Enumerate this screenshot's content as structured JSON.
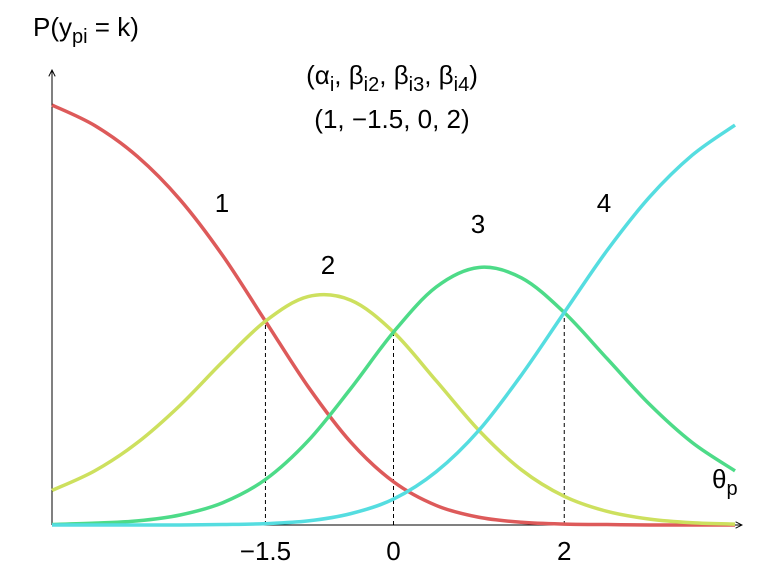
{
  "chart_data": {
    "type": "line",
    "ylabel": [
      "P(y",
      "pi",
      " = k)"
    ],
    "xlabel": [
      "θ",
      "p"
    ],
    "annotations": [
      [
        "(α",
        "i",
        ", β",
        "i2",
        ", β",
        "i3",
        ", β",
        "i4",
        ")"
      ],
      [
        "(1, ",
        "−",
        "1.5, 0, 2)"
      ]
    ],
    "x": [
      -4,
      -3.5,
      -3,
      -2.5,
      -2,
      -1.5,
      -1,
      -0.5,
      0,
      0.5,
      1,
      1.5,
      2,
      2.5,
      3,
      3.5,
      4
    ],
    "series": [
      {
        "name": "1",
        "color": "#dd5a5a",
        "values": [
          0.923,
          0.878,
          0.81,
          0.715,
          0.592,
          0.448,
          0.304,
          0.182,
          0.095,
          0.043,
          0.017,
          0.006,
          0.002,
          0.001,
          0,
          0,
          0
        ]
      },
      {
        "name": "2",
        "color": "#cde05e",
        "values": [
          0.076,
          0.119,
          0.181,
          0.263,
          0.359,
          0.448,
          0.502,
          0.494,
          0.424,
          0.317,
          0.208,
          0.121,
          0.063,
          0.03,
          0.013,
          0.005,
          0.002
        ]
      },
      {
        "name": "3",
        "color": "#4ddb88",
        "values": [
          0.001,
          0.004,
          0.009,
          0.022,
          0.049,
          0.1,
          0.185,
          0.3,
          0.424,
          0.523,
          0.566,
          0.543,
          0.467,
          0.366,
          0.265,
          0.181,
          0.119
        ]
      },
      {
        "name": "4",
        "color": "#55dde0",
        "values": [
          0,
          0,
          0,
          0,
          0.001,
          0.003,
          0.009,
          0.025,
          0.057,
          0.117,
          0.208,
          0.33,
          0.467,
          0.603,
          0.721,
          0.813,
          0.879
        ]
      }
    ],
    "xlim": [
      -4,
      4
    ],
    "ylim": [
      0,
      1
    ],
    "xticks": [
      {
        "value": -1.5,
        "label": "−1.5"
      },
      0,
      2
    ],
    "droplines": true,
    "grid": false
  }
}
